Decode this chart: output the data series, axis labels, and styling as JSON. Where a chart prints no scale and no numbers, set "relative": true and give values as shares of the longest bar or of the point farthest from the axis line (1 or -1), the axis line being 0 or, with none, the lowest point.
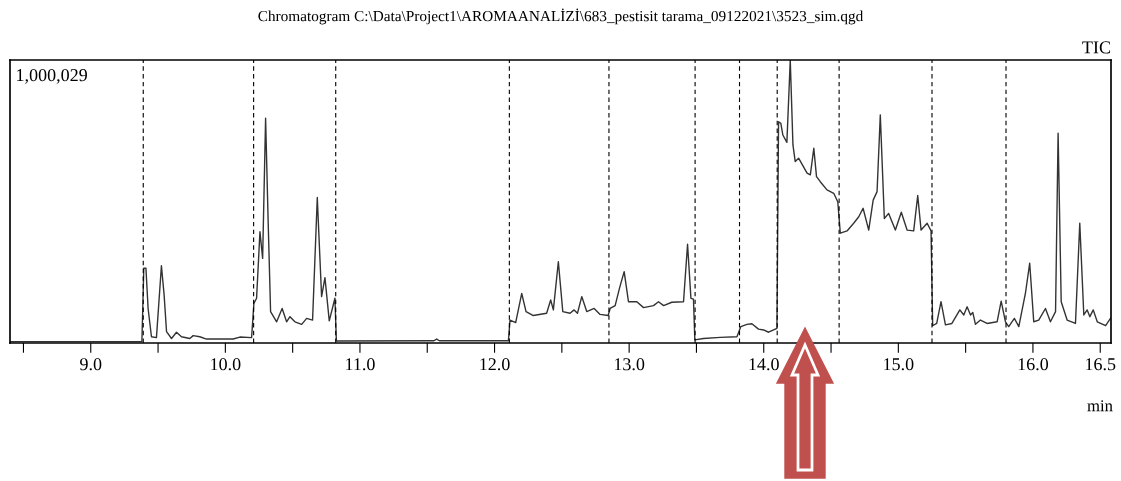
{
  "chart_data": {
    "type": "line",
    "title": "Chromatogram C:\\Data\\Project1\\AROMAANALİZİ\\683_pestisit tarama_09122021\\3523_sim.qgd",
    "xlabel": "min",
    "relative": true,
    "annotations": [
      "1,000,029",
      "TIC"
    ],
    "xlim": [
      8.4,
      16.58
    ],
    "xticks": [
      {
        "value": 8.5,
        "label": null
      },
      {
        "value": 9,
        "label": "9.0"
      },
      {
        "value": 9.5,
        "label": null
      },
      {
        "value": 10,
        "label": "10.0"
      },
      {
        "value": 10.5,
        "label": null
      },
      {
        "value": 11,
        "label": "11.0"
      },
      {
        "value": 11.5,
        "label": null
      },
      {
        "value": 12,
        "label": "12.0"
      },
      {
        "value": 12.5,
        "label": null
      },
      {
        "value": 13,
        "label": "13.0"
      },
      {
        "value": 13.5,
        "label": null
      },
      {
        "value": 14,
        "label": "14.0"
      },
      {
        "value": 14.5,
        "label": null
      },
      {
        "value": 15,
        "label": "15.0"
      },
      {
        "value": 15.5,
        "label": null
      },
      {
        "value": 16,
        "label": "16.0"
      },
      16.5
    ],
    "grid": false,
    "legend": false,
    "marker": "none",
    "line_style": "solid",
    "ref_lines": [
      {
        "axis": "x",
        "value": 9.39,
        "color": "#000000",
        "line_style": "dashed"
      },
      {
        "axis": "x",
        "value": 10.21,
        "color": "#000000",
        "line_style": "dashed"
      },
      {
        "axis": "x",
        "value": 10.82,
        "color": "#000000",
        "line_style": "dashed"
      },
      {
        "axis": "x",
        "value": 12.11,
        "color": "#000000",
        "line_style": "dashed"
      },
      {
        "axis": "x",
        "value": 12.85,
        "color": "#000000",
        "line_style": "dashed"
      },
      {
        "axis": "x",
        "value": 13.49,
        "color": "#000000",
        "line_style": "dashed"
      },
      {
        "axis": "x",
        "value": 13.82,
        "color": "#000000",
        "line_style": "dashed"
      },
      {
        "axis": "x",
        "value": 14.1,
        "color": "#000000",
        "line_style": "dashed"
      },
      {
        "axis": "x",
        "value": 14.56,
        "color": "#000000",
        "line_style": "dashed"
      },
      {
        "axis": "x",
        "value": 15.25,
        "color": "#000000",
        "line_style": "dashed"
      },
      {
        "axis": "x",
        "value": 15.8,
        "color": "#000000",
        "line_style": "dashed"
      }
    ],
    "series": [
      {
        "color": "#333333",
        "x": [
          8.4,
          9.38,
          9.394,
          9.41,
          9.426,
          9.451,
          9.488,
          9.525,
          9.545,
          9.563,
          9.6,
          9.637,
          9.674,
          9.736,
          9.761,
          9.81,
          9.86,
          10.058,
          10.108,
          10.195,
          10.212,
          10.232,
          10.257,
          10.277,
          10.299,
          10.318,
          10.336,
          10.381,
          10.422,
          10.455,
          10.48,
          10.517,
          10.567,
          10.604,
          10.648,
          10.683,
          10.715,
          10.74,
          10.772,
          10.814,
          10.825,
          11.55,
          11.57,
          11.59,
          12.103,
          12.115,
          12.157,
          12.202,
          12.234,
          12.288,
          12.387,
          12.417,
          12.437,
          12.474,
          12.507,
          12.561,
          12.591,
          12.616,
          12.648,
          12.685,
          12.74,
          12.784,
          12.844,
          12.859,
          12.896,
          12.928,
          12.963,
          12.995,
          13.057,
          13.107,
          13.181,
          13.218,
          13.256,
          13.317,
          13.404,
          13.434,
          13.459,
          13.478,
          13.488,
          13.552,
          13.677,
          13.801,
          13.83,
          13.875,
          13.912,
          13.961,
          13.999,
          14.036,
          14.098,
          14.11,
          14.127,
          14.142,
          14.172,
          14.197,
          14.217,
          14.234,
          14.259,
          14.322,
          14.346,
          14.372,
          14.392,
          14.42,
          14.47,
          14.52,
          14.55,
          14.569,
          14.619,
          14.668,
          14.706,
          14.738,
          14.78,
          14.813,
          14.842,
          14.866,
          14.896,
          14.928,
          14.978,
          15.022,
          15.065,
          15.114,
          15.144,
          15.169,
          15.214,
          15.243,
          15.255,
          15.285,
          15.317,
          15.35,
          15.398,
          15.457,
          15.486,
          15.511,
          15.536,
          15.553,
          15.573,
          15.61,
          15.659,
          15.734,
          15.764,
          15.796,
          15.82,
          15.862,
          15.895,
          15.944,
          15.976,
          16.006,
          16.043,
          16.093,
          16.13,
          16.168,
          16.187,
          16.21,
          16.254,
          16.316,
          16.348,
          16.378,
          16.403,
          16.423,
          16.448,
          16.478,
          16.54,
          16.576
        ],
        "values": [
          0.005,
          0.005,
          0.264,
          0.264,
          0.122,
          0.022,
          0.019,
          0.273,
          0.17,
          0.04,
          0.016,
          0.038,
          0.022,
          0.016,
          0.026,
          0.022,
          0.014,
          0.014,
          0.021,
          0.019,
          0.14,
          0.158,
          0.393,
          0.299,
          0.794,
          0.429,
          0.111,
          0.075,
          0.122,
          0.075,
          0.093,
          0.075,
          0.066,
          0.087,
          0.081,
          0.514,
          0.164,
          0.231,
          0.078,
          0.158,
          0.007,
          0.008,
          0.014,
          0.008,
          0.008,
          0.081,
          0.072,
          0.175,
          0.111,
          0.097,
          0.105,
          0.152,
          0.117,
          0.287,
          0.111,
          0.105,
          0.117,
          0.105,
          0.164,
          0.111,
          0.122,
          0.101,
          0.097,
          0.122,
          0.132,
          0.193,
          0.252,
          0.146,
          0.146,
          0.125,
          0.132,
          0.146,
          0.132,
          0.144,
          0.146,
          0.349,
          0.158,
          0.155,
          0.011,
          0.016,
          0.02,
          0.022,
          0.058,
          0.066,
          0.068,
          0.049,
          0.046,
          0.038,
          0.052,
          0.782,
          0.776,
          0.735,
          0.709,
          1.0,
          0.7,
          0.641,
          0.653,
          0.6,
          0.594,
          0.688,
          0.588,
          0.57,
          0.541,
          0.529,
          0.499,
          0.388,
          0.396,
          0.423,
          0.446,
          0.476,
          0.399,
          0.505,
          0.535,
          0.806,
          0.44,
          0.458,
          0.399,
          0.462,
          0.399,
          0.396,
          0.521,
          0.399,
          0.423,
          0.396,
          0.061,
          0.069,
          0.146,
          0.064,
          0.069,
          0.117,
          0.099,
          0.128,
          0.099,
          0.108,
          0.066,
          0.081,
          0.069,
          0.075,
          0.148,
          0.075,
          0.058,
          0.087,
          0.058,
          0.175,
          0.282,
          0.075,
          0.081,
          0.122,
          0.075,
          0.111,
          0.741,
          0.146,
          0.081,
          0.069,
          0.423,
          0.099,
          0.117,
          0.093,
          0.117,
          0.075,
          0.061,
          0.087
        ]
      }
    ]
  }
}
